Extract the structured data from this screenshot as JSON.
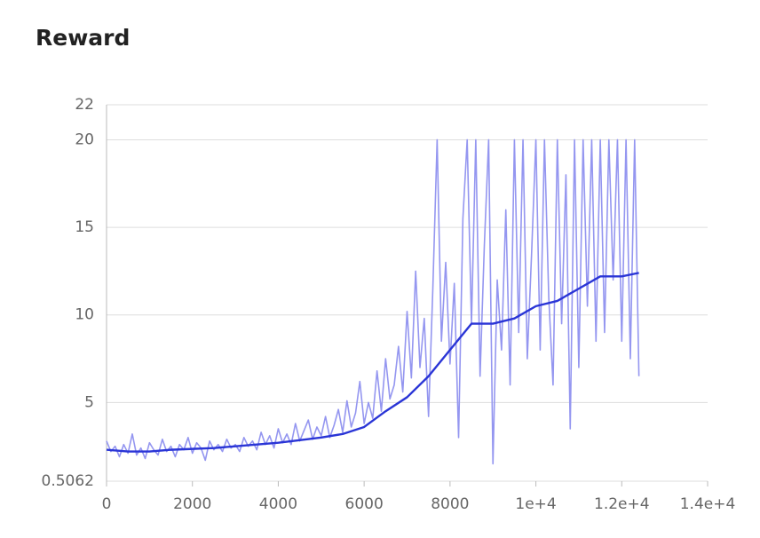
{
  "chart_data": {
    "type": "line",
    "title": "Reward",
    "series": [
      {
        "color": "#9496f0",
        "x": [
          0,
          100,
          200,
          300,
          400,
          500,
          600,
          700,
          800,
          900,
          1000,
          1100,
          1200,
          1300,
          1400,
          1500,
          1600,
          1700,
          1800,
          1900,
          2000,
          2100,
          2200,
          2300,
          2400,
          2500,
          2600,
          2700,
          2800,
          2900,
          3000,
          3100,
          3200,
          3300,
          3400,
          3500,
          3600,
          3700,
          3800,
          3900,
          4000,
          4100,
          4200,
          4300,
          4400,
          4500,
          4600,
          4700,
          4800,
          4900,
          5000,
          5100,
          5200,
          5300,
          5400,
          5500,
          5600,
          5700,
          5800,
          5900,
          6000,
          6100,
          6200,
          6300,
          6400,
          6500,
          6600,
          6700,
          6800,
          6900,
          7000,
          7100,
          7200,
          7300,
          7400,
          7500,
          7600,
          7700,
          7800,
          7900,
          8000,
          8100,
          8200,
          8300,
          8400,
          8500,
          8600,
          8700,
          8800,
          8900,
          9000,
          9100,
          9200,
          9300,
          9400,
          9500,
          9600,
          9700,
          9800,
          9900,
          10000,
          10100,
          10200,
          10300,
          10400,
          10500,
          10600,
          10700,
          10800,
          10900,
          11000,
          11100,
          11200,
          11300,
          11400,
          11500,
          11600,
          11700,
          11800,
          11900,
          12000,
          12100,
          12200,
          12300,
          12400
        ],
        "values": [
          2.8,
          2.2,
          2.5,
          1.9,
          2.6,
          2.1,
          3.2,
          2.0,
          2.4,
          1.8,
          2.7,
          2.3,
          2.0,
          2.9,
          2.2,
          2.5,
          1.9,
          2.6,
          2.3,
          3.0,
          2.1,
          2.7,
          2.4,
          1.7,
          2.8,
          2.3,
          2.6,
          2.2,
          2.9,
          2.4,
          2.6,
          2.2,
          3.0,
          2.5,
          2.8,
          2.3,
          3.3,
          2.6,
          3.1,
          2.4,
          3.5,
          2.7,
          3.2,
          2.6,
          3.8,
          2.8,
          3.4,
          4.0,
          2.9,
          3.6,
          3.1,
          4.2,
          3.0,
          3.7,
          4.6,
          3.3,
          5.1,
          3.6,
          4.4,
          6.2,
          3.8,
          5.0,
          4.1,
          6.8,
          4.5,
          7.5,
          5.2,
          6.0,
          8.2,
          5.6,
          10.2,
          6.4,
          12.5,
          7.0,
          9.8,
          4.2,
          11.5,
          20,
          8.5,
          13.0,
          7.2,
          11.8,
          3.0,
          15.5,
          20,
          9.5,
          20,
          6.5,
          14.0,
          20,
          1.5,
          12.0,
          8.0,
          16.0,
          6.0,
          20,
          9.0,
          20,
          7.5,
          13.5,
          20,
          8.0,
          20,
          11.0,
          6.0,
          20,
          9.5,
          18.0,
          3.5,
          20,
          7.0,
          20,
          10.5,
          20,
          8.5,
          20,
          9.0,
          20,
          12.0,
          20,
          8.5,
          20,
          7.5,
          20,
          6.5
        ]
      },
      {
        "color": "#2a35d6",
        "x": [
          0,
          500,
          1000,
          1500,
          2000,
          2500,
          3000,
          3500,
          4000,
          4500,
          5000,
          5500,
          6000,
          6500,
          7000,
          7500,
          8000,
          8500,
          9000,
          9500,
          10000,
          10500,
          11000,
          11500,
          12000,
          12400
        ],
        "values": [
          2.3,
          2.2,
          2.2,
          2.3,
          2.35,
          2.4,
          2.5,
          2.6,
          2.7,
          2.85,
          3.0,
          3.2,
          3.6,
          4.5,
          5.3,
          6.5,
          8.0,
          9.5,
          9.5,
          9.8,
          10.5,
          10.8,
          11.5,
          12.2,
          12.2,
          12.4
        ]
      }
    ],
    "xlim": [
      0,
      14000
    ],
    "xticks": [
      0,
      2000,
      4000,
      6000,
      8000,
      {
        "value": 10000,
        "label": "1e+4"
      },
      {
        "value": 12000,
        "label": "1.2e+4"
      },
      {
        "value": 14000,
        "label": "1.4e+4"
      }
    ],
    "ylim": [
      0.5062,
      22
    ],
    "yticks": [
      0.5062,
      5,
      10,
      15,
      20,
      22
    ],
    "grid": true
  }
}
